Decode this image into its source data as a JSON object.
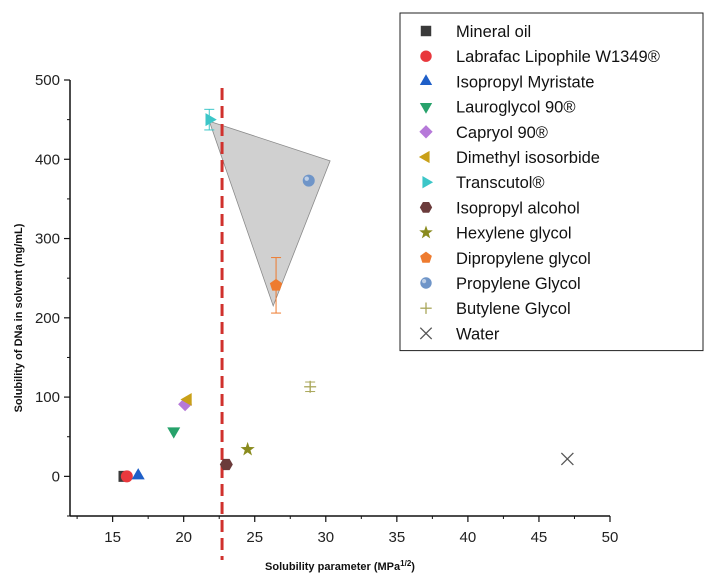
{
  "chart_data": {
    "type": "scatter",
    "xlabel": "Solubility parameter (MPa",
    "xlabel_sup": "1/2",
    "xlabel_end": ")",
    "ylabel": "Solubility of DNa in solvent (mg/mL)",
    "xlim": [
      12,
      50
    ],
    "ylim": [
      -50,
      500
    ],
    "xticks": [
      15,
      20,
      25,
      30,
      35,
      40,
      45,
      50
    ],
    "yticks": [
      0,
      100,
      200,
      300,
      400,
      500
    ],
    "grid": false,
    "legend_position": "top-right",
    "vertical_reference_line": {
      "x": 22.7,
      "color": "#d0312d",
      "style": "dashed"
    },
    "shaded_region": {
      "vertices": [
        [
          21.8,
          448
        ],
        [
          30.3,
          398
        ],
        [
          26.3,
          215
        ]
      ],
      "color": "#c8c8c8"
    },
    "series": [
      {
        "name": "Mineral oil",
        "marker": "square",
        "color": "#3a3a3a",
        "x": 15.8,
        "y": 0
      },
      {
        "name": "Labrafac Lipophile W1349®",
        "marker": "circle",
        "color": "#e8383d",
        "x": 16.0,
        "y": 0
      },
      {
        "name": "Isopropyl Myristate",
        "marker": "triangle-up",
        "color": "#1f5fc8",
        "x": 16.8,
        "y": 1
      },
      {
        "name": "Lauroglycol 90®",
        "marker": "triangle-down",
        "color": "#27a26b",
        "x": 19.3,
        "y": 57
      },
      {
        "name": "Capryol 90®",
        "marker": "diamond",
        "color": "#b679d9",
        "x": 20.1,
        "y": 91
      },
      {
        "name": "Dimethyl isosorbide",
        "marker": "triangle-left",
        "color": "#c9a018",
        "x": 20.3,
        "y": 97
      },
      {
        "name": "Transcutol®",
        "marker": "triangle-right",
        "color": "#3cc6c8",
        "x": 21.8,
        "y": 450,
        "yerr": 13
      },
      {
        "name": "Isopropyl alcohol",
        "marker": "hexagon",
        "color": "#6b3b3b",
        "x": 23.0,
        "y": 15
      },
      {
        "name": "Hexylene glycol",
        "marker": "star",
        "color": "#8a8b1e",
        "x": 24.5,
        "y": 34
      },
      {
        "name": "Dipropylene glycol",
        "marker": "pentagon",
        "color": "#ee7b2f",
        "x": 26.5,
        "y": 241,
        "yerr": 35
      },
      {
        "name": "Propylene Glycol",
        "marker": "sphere",
        "color": "#6f95c8",
        "x": 28.8,
        "y": 373
      },
      {
        "name": "Butylene Glycol",
        "marker": "plus",
        "color": "#a9a659",
        "x": 28.9,
        "y": 113,
        "yerr": 6
      },
      {
        "name": "Water",
        "marker": "x",
        "color": "#555555",
        "x": 47.0,
        "y": 22
      }
    ]
  }
}
